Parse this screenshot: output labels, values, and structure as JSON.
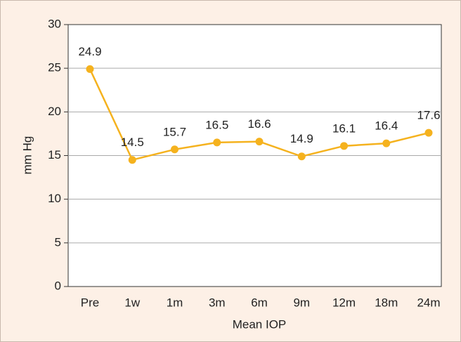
{
  "chart_data": {
    "type": "line",
    "categories": [
      "Pre",
      "1w",
      "1m",
      "3m",
      "6m",
      "9m",
      "12m",
      "18m",
      "24m"
    ],
    "series": [
      {
        "name": "Mean IOP",
        "color": "#f5b21e",
        "values": [
          24.9,
          14.5,
          15.7,
          16.5,
          16.6,
          14.9,
          16.1,
          16.4,
          17.6
        ]
      }
    ],
    "y_label": "mm Hg",
    "x_label": "Mean IOP",
    "ylim": [
      0,
      30
    ],
    "yticks": [
      0,
      5,
      10,
      15,
      20,
      25,
      30
    ],
    "grid": true
  }
}
